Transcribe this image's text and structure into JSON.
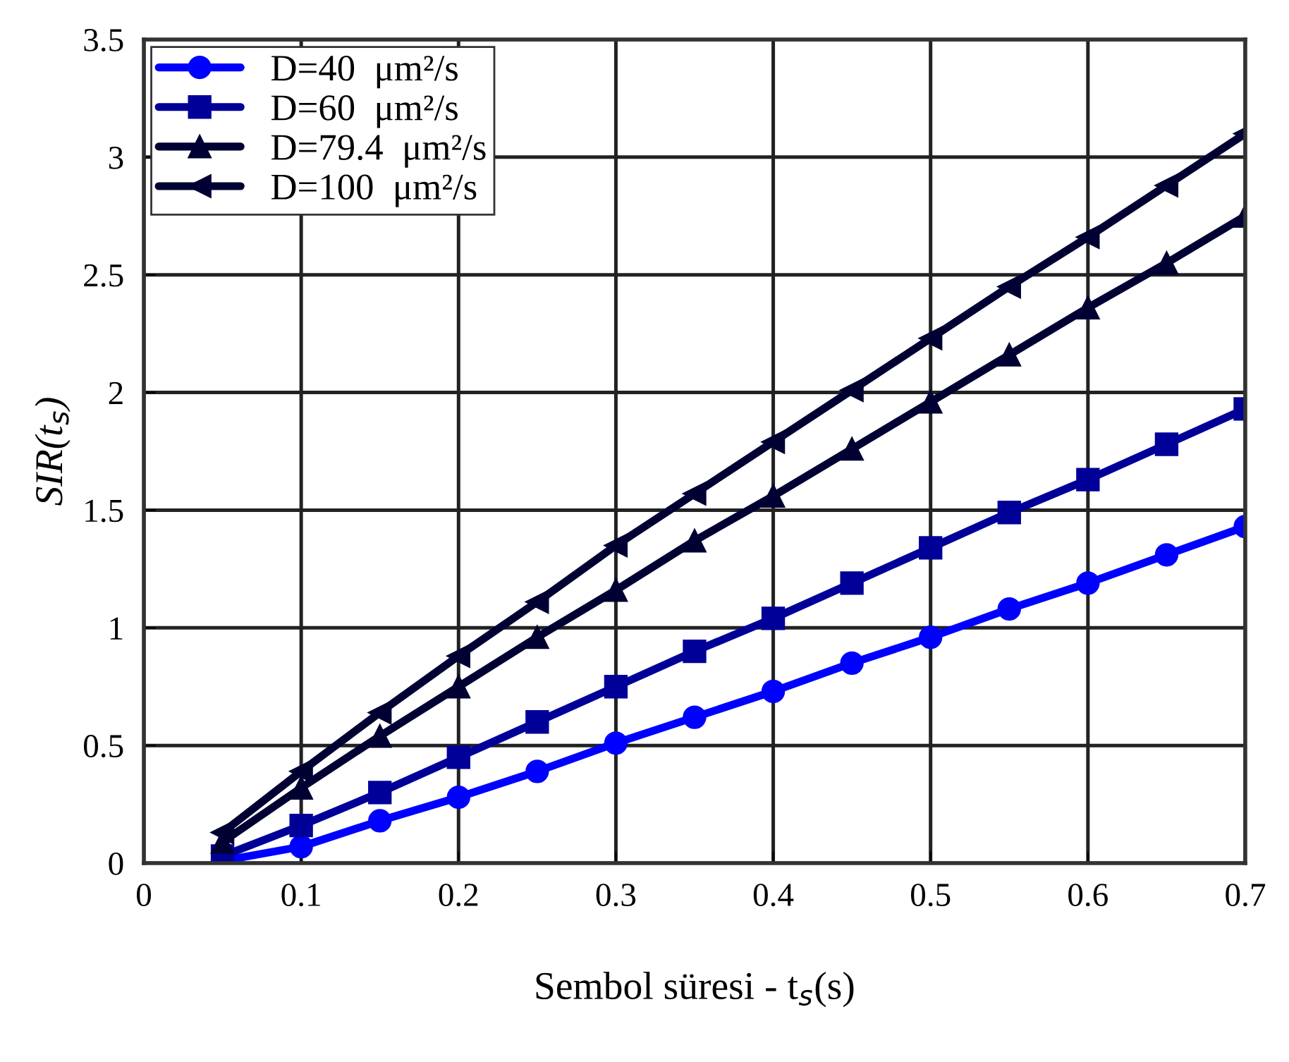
{
  "chart_data": {
    "type": "line",
    "xlabel": "Sembol süresi - t$_{s}$(s)",
    "ylabel": "SIR(t$_{s}$)",
    "x": [
      0.05,
      0.1,
      0.15,
      0.2,
      0.25,
      0.3,
      0.35,
      0.4,
      0.45,
      0.5,
      0.55,
      0.6,
      0.65,
      0.7
    ],
    "series": [
      {
        "name": "D=40  μm²/s",
        "color": "#0000ff",
        "marker": "circle",
        "values": [
          0.01,
          0.07,
          0.18,
          0.28,
          0.39,
          0.51,
          0.62,
          0.73,
          0.85,
          0.96,
          1.08,
          1.19,
          1.31,
          1.43
        ]
      },
      {
        "name": "D=60  μm²/s",
        "color": "#000099",
        "marker": "square",
        "values": [
          0.03,
          0.16,
          0.3,
          0.45,
          0.6,
          0.75,
          0.9,
          1.04,
          1.19,
          1.34,
          1.49,
          1.63,
          1.78,
          1.93
        ]
      },
      {
        "name": "D=79.4  μm²/s",
        "color": "#000033",
        "marker": "triangle",
        "values": [
          0.09,
          0.32,
          0.54,
          0.75,
          0.96,
          1.16,
          1.37,
          1.56,
          1.76,
          1.96,
          2.16,
          2.36,
          2.55,
          2.75
        ]
      },
      {
        "name": "D=100  μm²/s",
        "color": "#000033",
        "marker": "triangle-left",
        "values": [
          0.13,
          0.39,
          0.64,
          0.88,
          1.11,
          1.35,
          1.57,
          1.79,
          2.01,
          2.23,
          2.45,
          2.66,
          2.88,
          3.1
        ]
      }
    ],
    "xlim": [
      0,
      0.7
    ],
    "xticks": [
      0,
      0.1,
      0.2,
      0.3,
      0.4,
      0.5,
      0.6,
      0.7
    ],
    "ylim": [
      0,
      3.5
    ],
    "yticks": [
      0,
      0.5,
      1,
      1.5,
      2,
      2.5,
      3,
      3.5
    ],
    "grid": true,
    "legend": "top left",
    "line_style": "solid"
  }
}
